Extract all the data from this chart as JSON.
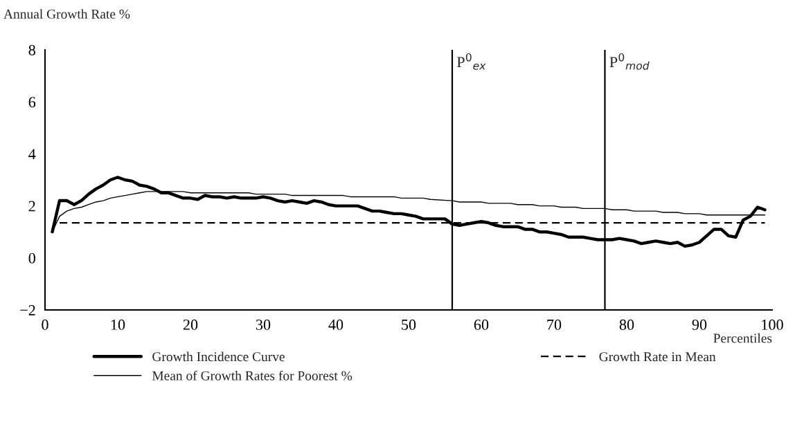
{
  "chart_data": {
    "type": "line",
    "ylabel": "Annual Growth Rate %",
    "xlabel": "Percentiles",
    "xlim": [
      0,
      100
    ],
    "xticks": [
      0,
      10,
      20,
      30,
      40,
      50,
      60,
      70,
      80,
      90,
      100
    ],
    "ylim": [
      -2,
      8
    ],
    "yticks": [
      {
        "value": -2,
        "label": "−2"
      },
      0,
      2,
      4,
      6,
      8
    ],
    "grid": false,
    "legend": "bottom",
    "marker": "none",
    "series": [
      {
        "name": "Growth Incidence Curve",
        "color": "#000000",
        "line_style": "solid",
        "x": [
          1,
          2,
          3,
          4,
          5,
          6,
          7,
          8,
          9,
          10,
          11,
          12,
          13,
          14,
          15,
          16,
          17,
          18,
          19,
          20,
          21,
          22,
          23,
          24,
          25,
          26,
          27,
          28,
          29,
          30,
          31,
          32,
          33,
          34,
          35,
          36,
          37,
          38,
          39,
          40,
          41,
          42,
          43,
          44,
          45,
          46,
          47,
          48,
          49,
          50,
          51,
          52,
          53,
          54,
          55,
          56,
          57,
          58,
          59,
          60,
          61,
          62,
          63,
          64,
          65,
          66,
          67,
          68,
          69,
          70,
          71,
          72,
          73,
          74,
          75,
          76,
          77,
          78,
          79,
          80,
          81,
          82,
          83,
          84,
          85,
          86,
          87,
          88,
          89,
          90,
          91,
          92,
          93,
          94,
          95,
          96,
          97,
          98,
          99
        ],
        "values": [
          1.0,
          2.2,
          2.2,
          2.05,
          2.2,
          2.45,
          2.65,
          2.8,
          3.0,
          3.1,
          3.0,
          2.95,
          2.8,
          2.75,
          2.65,
          2.5,
          2.5,
          2.4,
          2.3,
          2.3,
          2.25,
          2.4,
          2.35,
          2.35,
          2.3,
          2.35,
          2.3,
          2.3,
          2.3,
          2.35,
          2.3,
          2.2,
          2.15,
          2.2,
          2.15,
          2.1,
          2.2,
          2.15,
          2.05,
          2.0,
          2.0,
          2.0,
          2.0,
          1.9,
          1.8,
          1.8,
          1.75,
          1.7,
          1.7,
          1.65,
          1.6,
          1.5,
          1.5,
          1.5,
          1.5,
          1.3,
          1.25,
          1.3,
          1.35,
          1.4,
          1.35,
          1.25,
          1.2,
          1.2,
          1.2,
          1.1,
          1.1,
          1.0,
          1.0,
          0.95,
          0.9,
          0.8,
          0.8,
          0.8,
          0.75,
          0.7,
          0.7,
          0.7,
          0.75,
          0.7,
          0.65,
          0.55,
          0.6,
          0.65,
          0.6,
          0.55,
          0.6,
          0.45,
          0.5,
          0.6,
          0.85,
          1.1,
          1.1,
          0.85,
          0.8,
          1.45,
          1.6,
          1.95,
          1.85
        ]
      },
      {
        "name": "Mean of Growth Rates for Poorest %",
        "color": "#000000",
        "line_style": "solid",
        "x": [
          1,
          2,
          3,
          4,
          5,
          6,
          7,
          8,
          9,
          10,
          11,
          12,
          13,
          14,
          19,
          20,
          28,
          29,
          33,
          34,
          41,
          42,
          48,
          49,
          52,
          53,
          56,
          57,
          60,
          61,
          64,
          65,
          67,
          68,
          70,
          71,
          73,
          74,
          77,
          78,
          80,
          81,
          84,
          85,
          87,
          88,
          90,
          91,
          99
        ],
        "values": [
          1.0,
          1.6,
          1.8,
          1.9,
          1.95,
          2.05,
          2.15,
          2.2,
          2.3,
          2.35,
          2.4,
          2.45,
          2.5,
          2.55,
          2.55,
          2.5,
          2.5,
          2.45,
          2.45,
          2.4,
          2.4,
          2.35,
          2.35,
          2.3,
          2.3,
          2.25,
          2.2,
          2.15,
          2.15,
          2.1,
          2.1,
          2.05,
          2.05,
          2.0,
          2.0,
          1.95,
          1.95,
          1.9,
          1.9,
          1.85,
          1.85,
          1.8,
          1.8,
          1.75,
          1.75,
          1.7,
          1.7,
          1.65,
          1.65
        ]
      },
      {
        "name": "Growth Rate in Mean",
        "color": "#000000",
        "line_style": "dashed",
        "x": [
          2,
          99
        ],
        "values": [
          1.35,
          1.35
        ]
      }
    ],
    "ref_lines": [
      {
        "axis": "x",
        "value": 56,
        "label": "P$^{0}$$_{ex}$",
        "color": "#000000"
      },
      {
        "axis": "x",
        "value": 77,
        "label": "P$^{0}$$_{mod}$",
        "color": "#000000"
      }
    ]
  }
}
